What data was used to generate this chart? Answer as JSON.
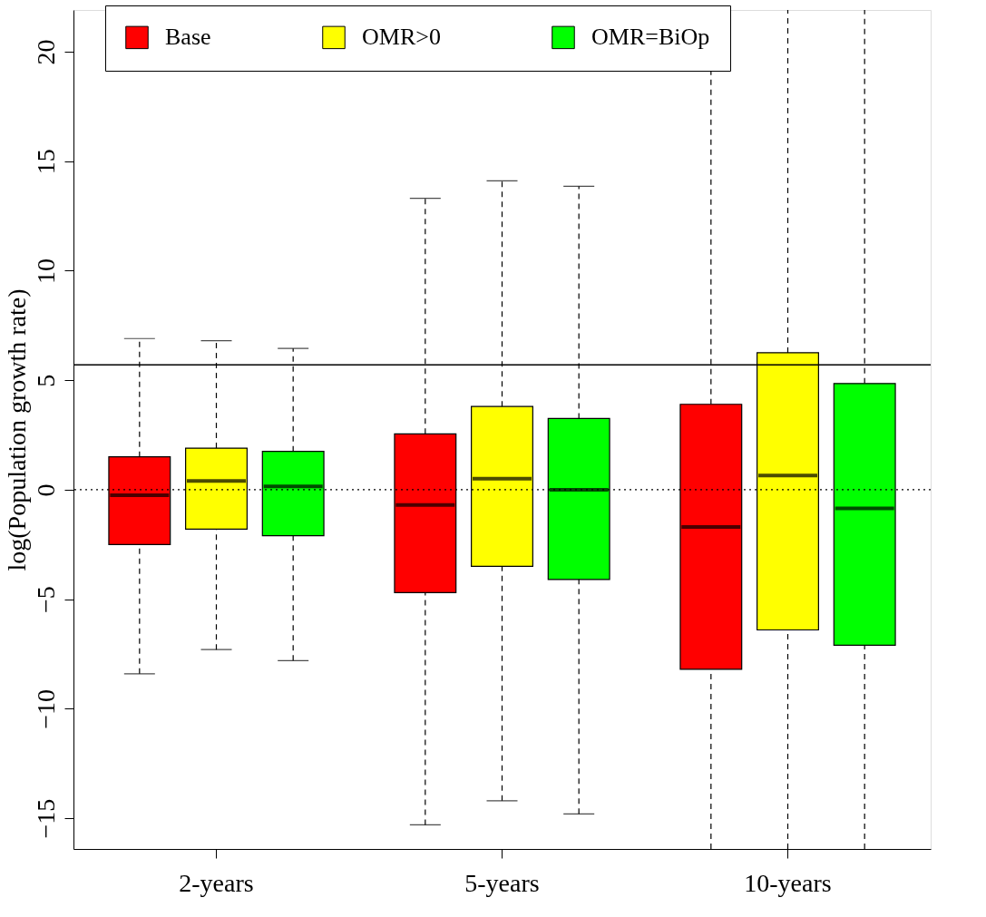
{
  "chart_data": {
    "type": "box",
    "ylabel": "log(Population growth rate)",
    "categories": [
      "2-years",
      "5-years",
      "10-years"
    ],
    "ylim": [
      -16.4,
      21.9
    ],
    "yticks": [
      -15,
      -10,
      -5,
      0,
      5,
      10,
      15,
      20
    ],
    "grid": false,
    "legend": "top",
    "series": [
      {
        "name": "Base",
        "color": "#ff0000",
        "boxes": [
          {
            "low": -8.4,
            "q1": -2.5,
            "median": -0.25,
            "q3": 1.5,
            "high": 6.9
          },
          {
            "low": -15.3,
            "q1": -4.7,
            "median": -0.7,
            "q3": 2.55,
            "high": 13.3
          },
          {
            "low": -16.4,
            "q1": -8.2,
            "median": -1.7,
            "q3": 3.9,
            "high": 21.9
          }
        ]
      },
      {
        "name": "OMR>0",
        "color": "#ffff00",
        "boxes": [
          {
            "low": -7.3,
            "q1": -1.8,
            "median": 0.4,
            "q3": 1.9,
            "high": 6.8
          },
          {
            "low": -14.2,
            "q1": -3.5,
            "median": 0.5,
            "q3": 3.8,
            "high": 14.1
          },
          {
            "low": -16.4,
            "q1": -6.4,
            "median": 0.65,
            "q3": 6.25,
            "high": 21.9
          }
        ]
      },
      {
        "name": "OMR=BiOp",
        "color": "#00ff00",
        "boxes": [
          {
            "low": -7.8,
            "q1": -2.1,
            "median": 0.15,
            "q3": 1.75,
            "high": 6.45
          },
          {
            "low": -14.8,
            "q1": -4.1,
            "median": 0.0,
            "q3": 3.25,
            "high": 13.85
          },
          {
            "low": -16.4,
            "q1": -7.1,
            "median": -0.85,
            "q3": 4.85,
            "high": 21.9
          }
        ]
      }
    ],
    "ref_lines": [
      {
        "axis": "y",
        "value": 5.7,
        "line_style": "solid"
      },
      {
        "axis": "y",
        "value": 0,
        "line_style": "dotted"
      }
    ]
  }
}
